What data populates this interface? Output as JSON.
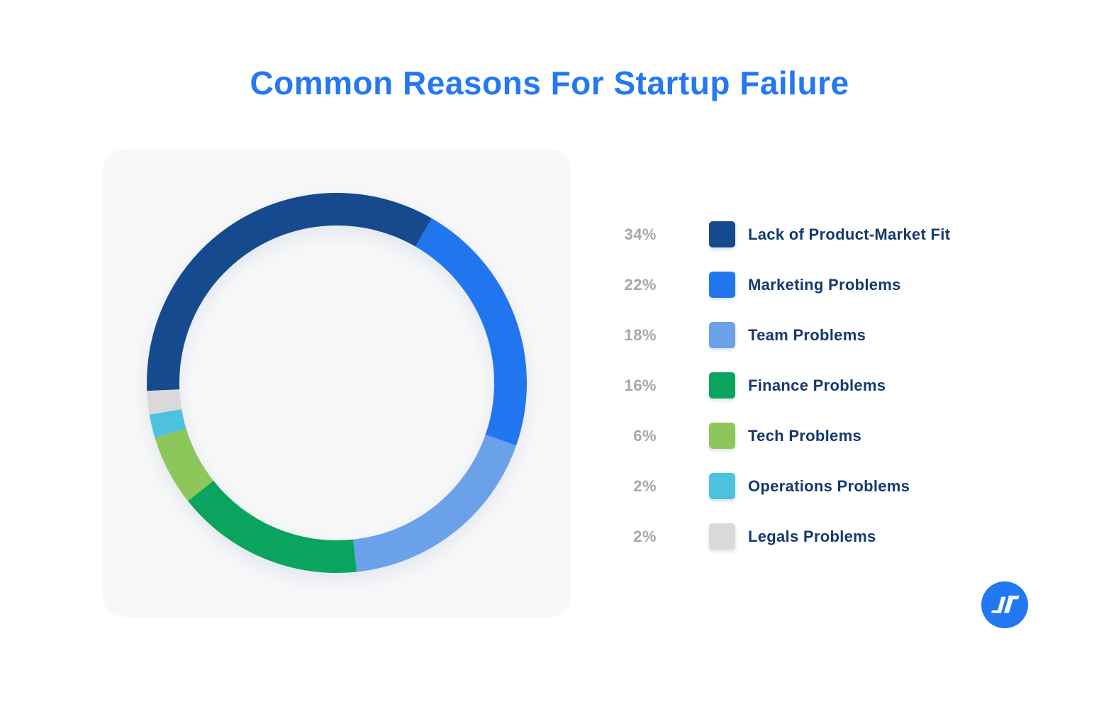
{
  "title": {
    "text": "Common Reasons For Startup Failure",
    "color": "#2478f2"
  },
  "chart_data": {
    "type": "pie",
    "subtype": "donut",
    "title": "Common Reasons For Startup Failure",
    "categories": [
      "Lack of Product-Market Fit",
      "Marketing Problems",
      "Team Problems",
      "Finance Problems",
      "Tech Problems",
      "Operations Problems",
      "Legals Problems"
    ],
    "values": [
      34,
      22,
      18,
      16,
      6,
      2,
      2
    ],
    "unit": "%",
    "colors": [
      "#164a8e",
      "#2176f0",
      "#6aa1e9",
      "#0aa45e",
      "#8dc65a",
      "#4cc2de",
      "#d9d9da"
    ],
    "start_angle_deg_clockwise_from_top": -92.4,
    "direction": "clockwise",
    "inner_radius_ratio": 0.83,
    "legend_position": "right",
    "data_labels": "none"
  },
  "legend": {
    "items": [
      {
        "pct": "34%",
        "label": "Lack of Product-Market Fit",
        "color": "#164a8e"
      },
      {
        "pct": "22%",
        "label": "Marketing Problems",
        "color": "#2176f0"
      },
      {
        "pct": "18%",
        "label": "Team Problems",
        "color": "#6aa1e9"
      },
      {
        "pct": "16%",
        "label": "Finance Problems",
        "color": "#0aa45e"
      },
      {
        "pct": "6%",
        "label": "Tech Problems",
        "color": "#8dc65a"
      },
      {
        "pct": "2%",
        "label": "Operations Problems",
        "color": "#4cc2de"
      },
      {
        "pct": "2%",
        "label": "Legals Problems",
        "color": "#d9d9da"
      }
    ]
  },
  "card": {
    "background": "#f8f8f9"
  },
  "logo": {
    "background": "#2277f2",
    "glyph_color": "#ffffff"
  }
}
